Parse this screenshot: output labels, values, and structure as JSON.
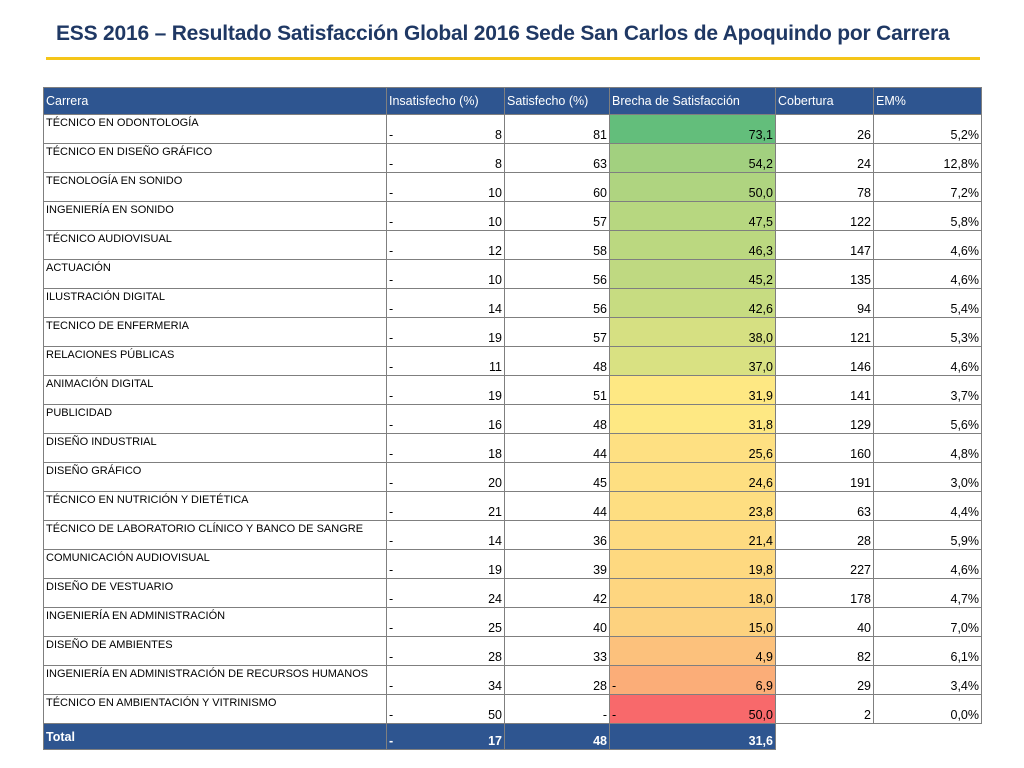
{
  "title": "ESS 2016 – Resultado Satisfacción Global 2016 Sede San Carlos de Apoquindo por Carrera",
  "colors": {
    "title": "#1f3864",
    "accent_line": "#f5c518",
    "header_bg": "#2e5590"
  },
  "table": {
    "headers": [
      "Carrera",
      "Insatisfecho (%)",
      "Satisfecho (%)",
      "Brecha de Satisfacción",
      "Cobertura",
      "EM%"
    ],
    "rows": [
      {
        "carrera": "TÉCNICO EN ODONTOLOGÍA",
        "ins_sign": "-",
        "ins": "8",
        "sat": "81",
        "bre_sign": "",
        "brecha": "73,1",
        "cob": "26",
        "em": "5,2%",
        "color": "#63be7b"
      },
      {
        "carrera": "TÉCNICO EN DISEÑO GRÁFICO",
        "ins_sign": "-",
        "ins": "8",
        "sat": "63",
        "bre_sign": "",
        "brecha": "54,2",
        "cob": "24",
        "em": "12,8%",
        "color": "#a2d07f"
      },
      {
        "carrera": "TECNOLOGÍA EN SONIDO",
        "ins_sign": "-",
        "ins": "10",
        "sat": "60",
        "bre_sign": "",
        "brecha": "50,0",
        "cob": "78",
        "em": "7,2%",
        "color": "#afd480"
      },
      {
        "carrera": "INGENIERÍA EN SONIDO",
        "ins_sign": "-",
        "ins": "10",
        "sat": "57",
        "bre_sign": "",
        "brecha": "47,5",
        "cob": "122",
        "em": "5,8%",
        "color": "#b7d780"
      },
      {
        "carrera": "TÉCNICO AUDIOVISUAL",
        "ins_sign": "-",
        "ins": "12",
        "sat": "58",
        "bre_sign": "",
        "brecha": "46,3",
        "cob": "147",
        "em": "4,6%",
        "color": "#bbd880"
      },
      {
        "carrera": "ACTUACIÓN",
        "ins_sign": "-",
        "ins": "10",
        "sat": "56",
        "bre_sign": "",
        "brecha": "45,2",
        "cob": "135",
        "em": "4,6%",
        "color": "#bfd981"
      },
      {
        "carrera": "ILUSTRACIÓN DIGITAL",
        "ins_sign": "-",
        "ins": "14",
        "sat": "56",
        "bre_sign": "",
        "brecha": "42,6",
        "cob": "94",
        "em": "5,4%",
        "color": "#c7dc81"
      },
      {
        "carrera": "TECNICO DE ENFERMERIA",
        "ins_sign": "-",
        "ins": "19",
        "sat": "57",
        "bre_sign": "",
        "brecha": "38,0",
        "cob": "121",
        "em": "5,3%",
        "color": "#d6e082"
      },
      {
        "carrera": "RELACIONES PÚBLICAS",
        "ins_sign": "-",
        "ins": "11",
        "sat": "48",
        "bre_sign": "",
        "brecha": "37,0",
        "cob": "146",
        "em": "4,6%",
        "color": "#d9e182"
      },
      {
        "carrera": "ANIMACIÓN DIGITAL",
        "ins_sign": "-",
        "ins": "19",
        "sat": "51",
        "bre_sign": "",
        "brecha": "31,9",
        "cob": "141",
        "em": "3,7%",
        "color": "#fee883"
      },
      {
        "carrera": "PUBLICIDAD",
        "ins_sign": "-",
        "ins": "16",
        "sat": "48",
        "bre_sign": "",
        "brecha": "31,8",
        "cob": "129",
        "em": "5,6%",
        "color": "#fee883"
      },
      {
        "carrera": "DISEÑO INDUSTRIAL",
        "ins_sign": "-",
        "ins": "18",
        "sat": "44",
        "bre_sign": "",
        "brecha": "25,6",
        "cob": "160",
        "em": "4,8%",
        "color": "#fee082"
      },
      {
        "carrera": "DISEÑO GRÁFICO",
        "ins_sign": "-",
        "ins": "20",
        "sat": "45",
        "bre_sign": "",
        "brecha": "24,6",
        "cob": "191",
        "em": "3,0%",
        "color": "#fedf81"
      },
      {
        "carrera": "TÉCNICO EN NUTRICIÓN Y DIETÉTICA",
        "ins_sign": "-",
        "ins": "21",
        "sat": "44",
        "bre_sign": "",
        "brecha": "23,8",
        "cob": "63",
        "em": "4,4%",
        "color": "#fede81"
      },
      {
        "carrera": "TÉCNICO DE LABORATORIO CLÍNICO Y BANCO DE SANGRE",
        "ins_sign": "-",
        "ins": "14",
        "sat": "36",
        "bre_sign": "",
        "brecha": "21,4",
        "cob": "28",
        "em": "5,9%",
        "color": "#fedb81"
      },
      {
        "carrera": "COMUNICACIÓN AUDIOVISUAL",
        "ins_sign": "-",
        "ins": "19",
        "sat": "39",
        "bre_sign": "",
        "brecha": "19,8",
        "cob": "227",
        "em": "4,6%",
        "color": "#fed980"
      },
      {
        "carrera": "DISEÑO DE VESTUARIO",
        "ins_sign": "-",
        "ins": "24",
        "sat": "42",
        "bre_sign": "",
        "brecha": "18,0",
        "cob": "178",
        "em": "4,7%",
        "color": "#fed680"
      },
      {
        "carrera": "INGENIERÍA EN ADMINISTRACIÓN",
        "ins_sign": "-",
        "ins": "25",
        "sat": "40",
        "bre_sign": "",
        "brecha": "15,0",
        "cob": "40",
        "em": "7,0%",
        "color": "#fdd27f"
      },
      {
        "carrera": "DISEÑO DE AMBIENTES",
        "ins_sign": "-",
        "ins": "28",
        "sat": "33",
        "bre_sign": "",
        "brecha": "4,9",
        "cob": "82",
        "em": "6,1%",
        "color": "#fcc17c"
      },
      {
        "carrera": "INGENIERÍA EN ADMINISTRACIÓN DE RECURSOS HUMANOS",
        "ins_sign": "-",
        "ins": "34",
        "sat": "28",
        "bre_sign": "-",
        "brecha": "6,9",
        "cob": "29",
        "em": "3,4%",
        "color": "#fbad78"
      },
      {
        "carrera": "TÉCNICO EN AMBIENTACIÓN Y VITRINISMO",
        "ins_sign": "-",
        "ins": "50",
        "sat": "-",
        "bre_sign": "-",
        "brecha": "50,0",
        "cob": "2",
        "em": "0,0%",
        "color": "#f8696b"
      }
    ],
    "total": {
      "label": "Total",
      "ins_sign": "-",
      "ins": "17",
      "sat": "48",
      "brecha": "31,6"
    }
  }
}
